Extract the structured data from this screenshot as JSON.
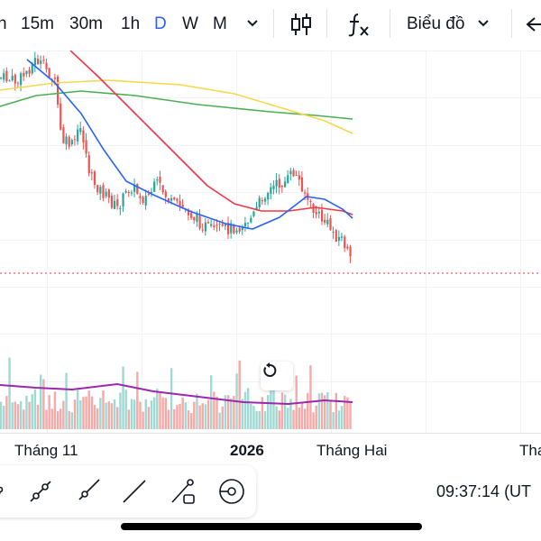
{
  "toolbar": {
    "intervals": [
      {
        "label": "h",
        "active": false
      },
      {
        "label": "15m",
        "active": false
      },
      {
        "label": "30m",
        "active": false
      },
      {
        "label": "1h",
        "active": false
      },
      {
        "label": "D",
        "active": true
      },
      {
        "label": "W",
        "active": false
      },
      {
        "label": "M",
        "active": false
      }
    ],
    "interval_dropdown_icon": "chevron-down-icon",
    "chart_type_icon": "candles-icon",
    "indicators_icon": "fx-icon",
    "chart_menu_label": "Biểu đồ",
    "chart_menu_icon": "chevron-down-icon",
    "back_icon": "arrow-left-icon",
    "active_color": "#2962ff"
  },
  "chart": {
    "up_color": "#26a69a",
    "down_color": "#ef5350",
    "ma_colors": {
      "blue": "#2962ff",
      "red": "#f23645",
      "green": "#4caf50",
      "yellow": "#f6d84a"
    },
    "volume_ma_color": "#9c27b0",
    "last_price_line_color": "#f23645",
    "reset_icon": "reset-icon"
  },
  "time_axis": {
    "labels": [
      {
        "text": "Tháng 11",
        "bold": false
      },
      {
        "text": "2026",
        "bold": true
      },
      {
        "text": "Tháng Hai",
        "bold": false
      },
      {
        "text": "Tha",
        "bold": false
      }
    ]
  },
  "drawing_tools": [
    "trend-line-icon",
    "ray-icon",
    "extended-line-icon",
    "info-line-icon",
    "trend-angle-icon",
    "circle-target-icon"
  ],
  "clock": "09:37:14 (UT"
}
